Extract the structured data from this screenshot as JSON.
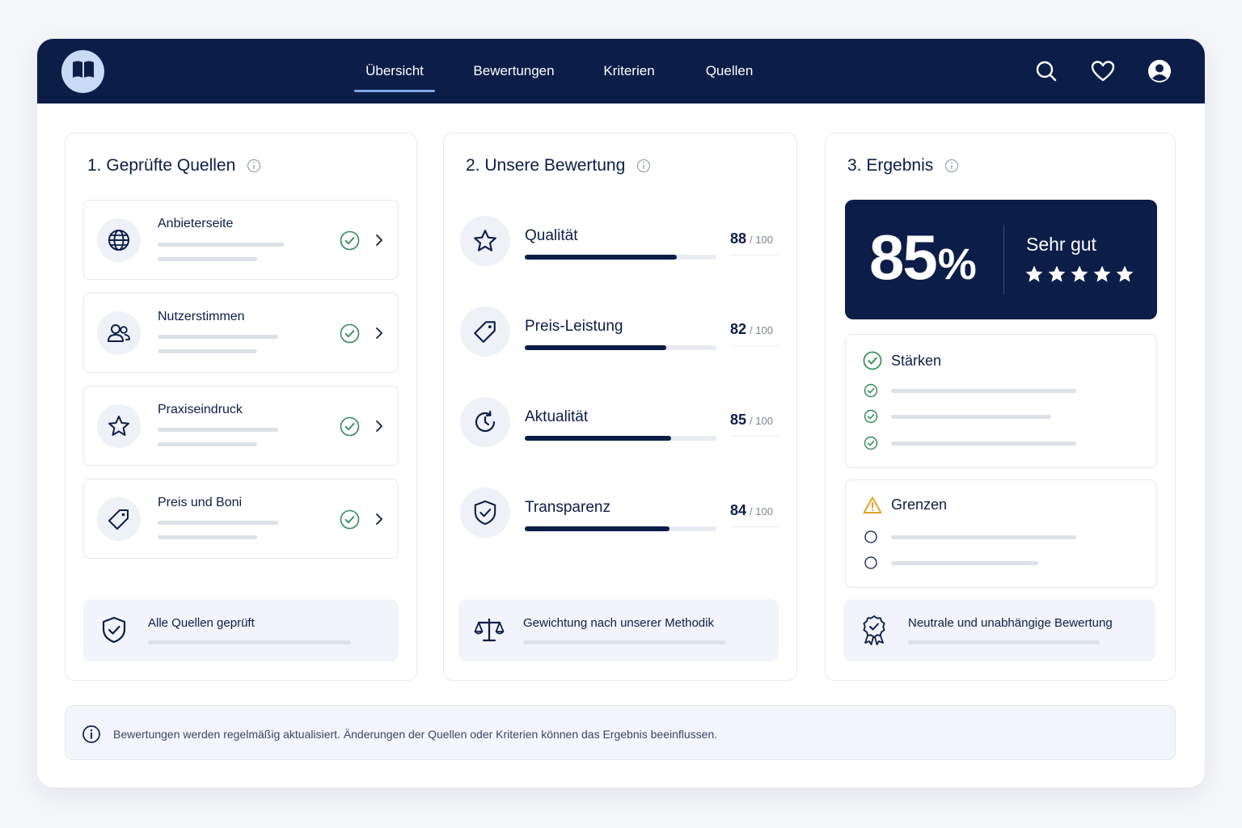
{
  "nav": {
    "logo_icon": "open-book-icon",
    "tabs": [
      {
        "label": "Übersicht",
        "active": true
      },
      {
        "label": "Bewertungen",
        "active": false
      },
      {
        "label": "Kriterien",
        "active": false
      },
      {
        "label": "Quellen",
        "active": false
      }
    ],
    "icons": [
      "search-icon",
      "heart-icon",
      "user-icon"
    ]
  },
  "sources": {
    "number": "1.",
    "title": "Geprüfte Quellen",
    "items": [
      {
        "label": "Anbieterseite",
        "icon": "globe-icon",
        "verified": true
      },
      {
        "label": "Nutzerstimmen",
        "icon": "users-icon",
        "verified": true
      },
      {
        "label": "Praxiseindruck",
        "icon": "star-icon",
        "verified": true
      },
      {
        "label": "Preis und Boni",
        "icon": "tag-icon",
        "verified": true
      }
    ],
    "footer": {
      "text": "Alle Quellen geprüft",
      "icon": "shield-check-icon"
    }
  },
  "rating": {
    "number": "2.",
    "title": "Unsere Bewertung",
    "items": [
      {
        "label": "Qualität",
        "score": "88",
        "max": "/ 100",
        "value": 88,
        "icon": "star-icon"
      },
      {
        "label": "Preis-Leistung",
        "score": "82",
        "max": "/ 100",
        "value": 82,
        "icon": "tag-icon"
      },
      {
        "label": "Aktualität",
        "score": "85",
        "max": "/ 100",
        "value": 85,
        "icon": "clock-refresh-icon"
      },
      {
        "label": "Transparenz",
        "score": "84",
        "max": "/ 100",
        "value": 84,
        "icon": "shield-check-icon"
      }
    ],
    "footer": {
      "text": "Gewichtung nach unserer Methodik",
      "icon": "scale-icon"
    }
  },
  "result": {
    "number": "3.",
    "title": "Ergebnis",
    "score": "85",
    "percent": "%",
    "verdict": "Sehr gut",
    "stars": 5,
    "strengths": {
      "title": "Stärken",
      "count": 3
    },
    "limits": {
      "title": "Grenzen",
      "count": 2
    },
    "footer": {
      "text": "Neutrale und unabhängige Bewertung",
      "icon": "award-badge-icon"
    }
  },
  "footer_note": {
    "text": "Bewertungen werden regelmäßig aktualisiert. Änderungen der Quellen oder Kriterien können das Ergebnis beeinflussen.",
    "icon": "info-icon"
  },
  "colors": {
    "navy": "#0c1d48",
    "accent": "#7ea5e6",
    "success": "#2f8a57",
    "warning": "#e5a124",
    "background": "#f5f6f9"
  }
}
